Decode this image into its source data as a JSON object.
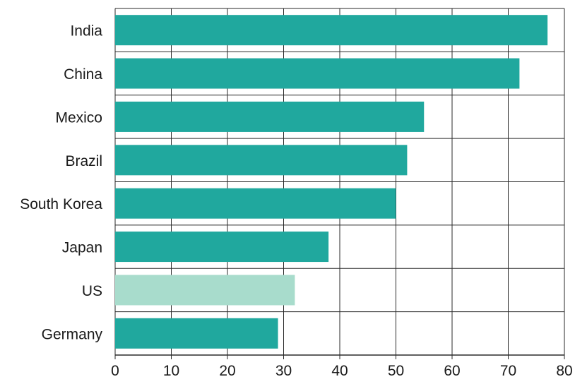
{
  "chart_data": {
    "type": "bar",
    "orientation": "horizontal",
    "title": "",
    "xlabel": "",
    "ylabel": "",
    "categories": [
      "India",
      "China",
      "Mexico",
      "Brazil",
      "South Korea",
      "Japan",
      "US",
      "Germany"
    ],
    "values": [
      77,
      72,
      55,
      52,
      50,
      38,
      32,
      29
    ],
    "highlight": [
      "normal",
      "normal",
      "normal",
      "normal",
      "normal",
      "normal",
      "highlight",
      "normal"
    ],
    "xlim": [
      0,
      80
    ],
    "xticks": [
      0,
      10,
      20,
      30,
      40,
      50,
      60,
      70,
      80
    ],
    "grid": true,
    "colors": {
      "bar": "#20a89e",
      "highlight": "#a8dccc",
      "grid": "#2a2a2a"
    }
  }
}
